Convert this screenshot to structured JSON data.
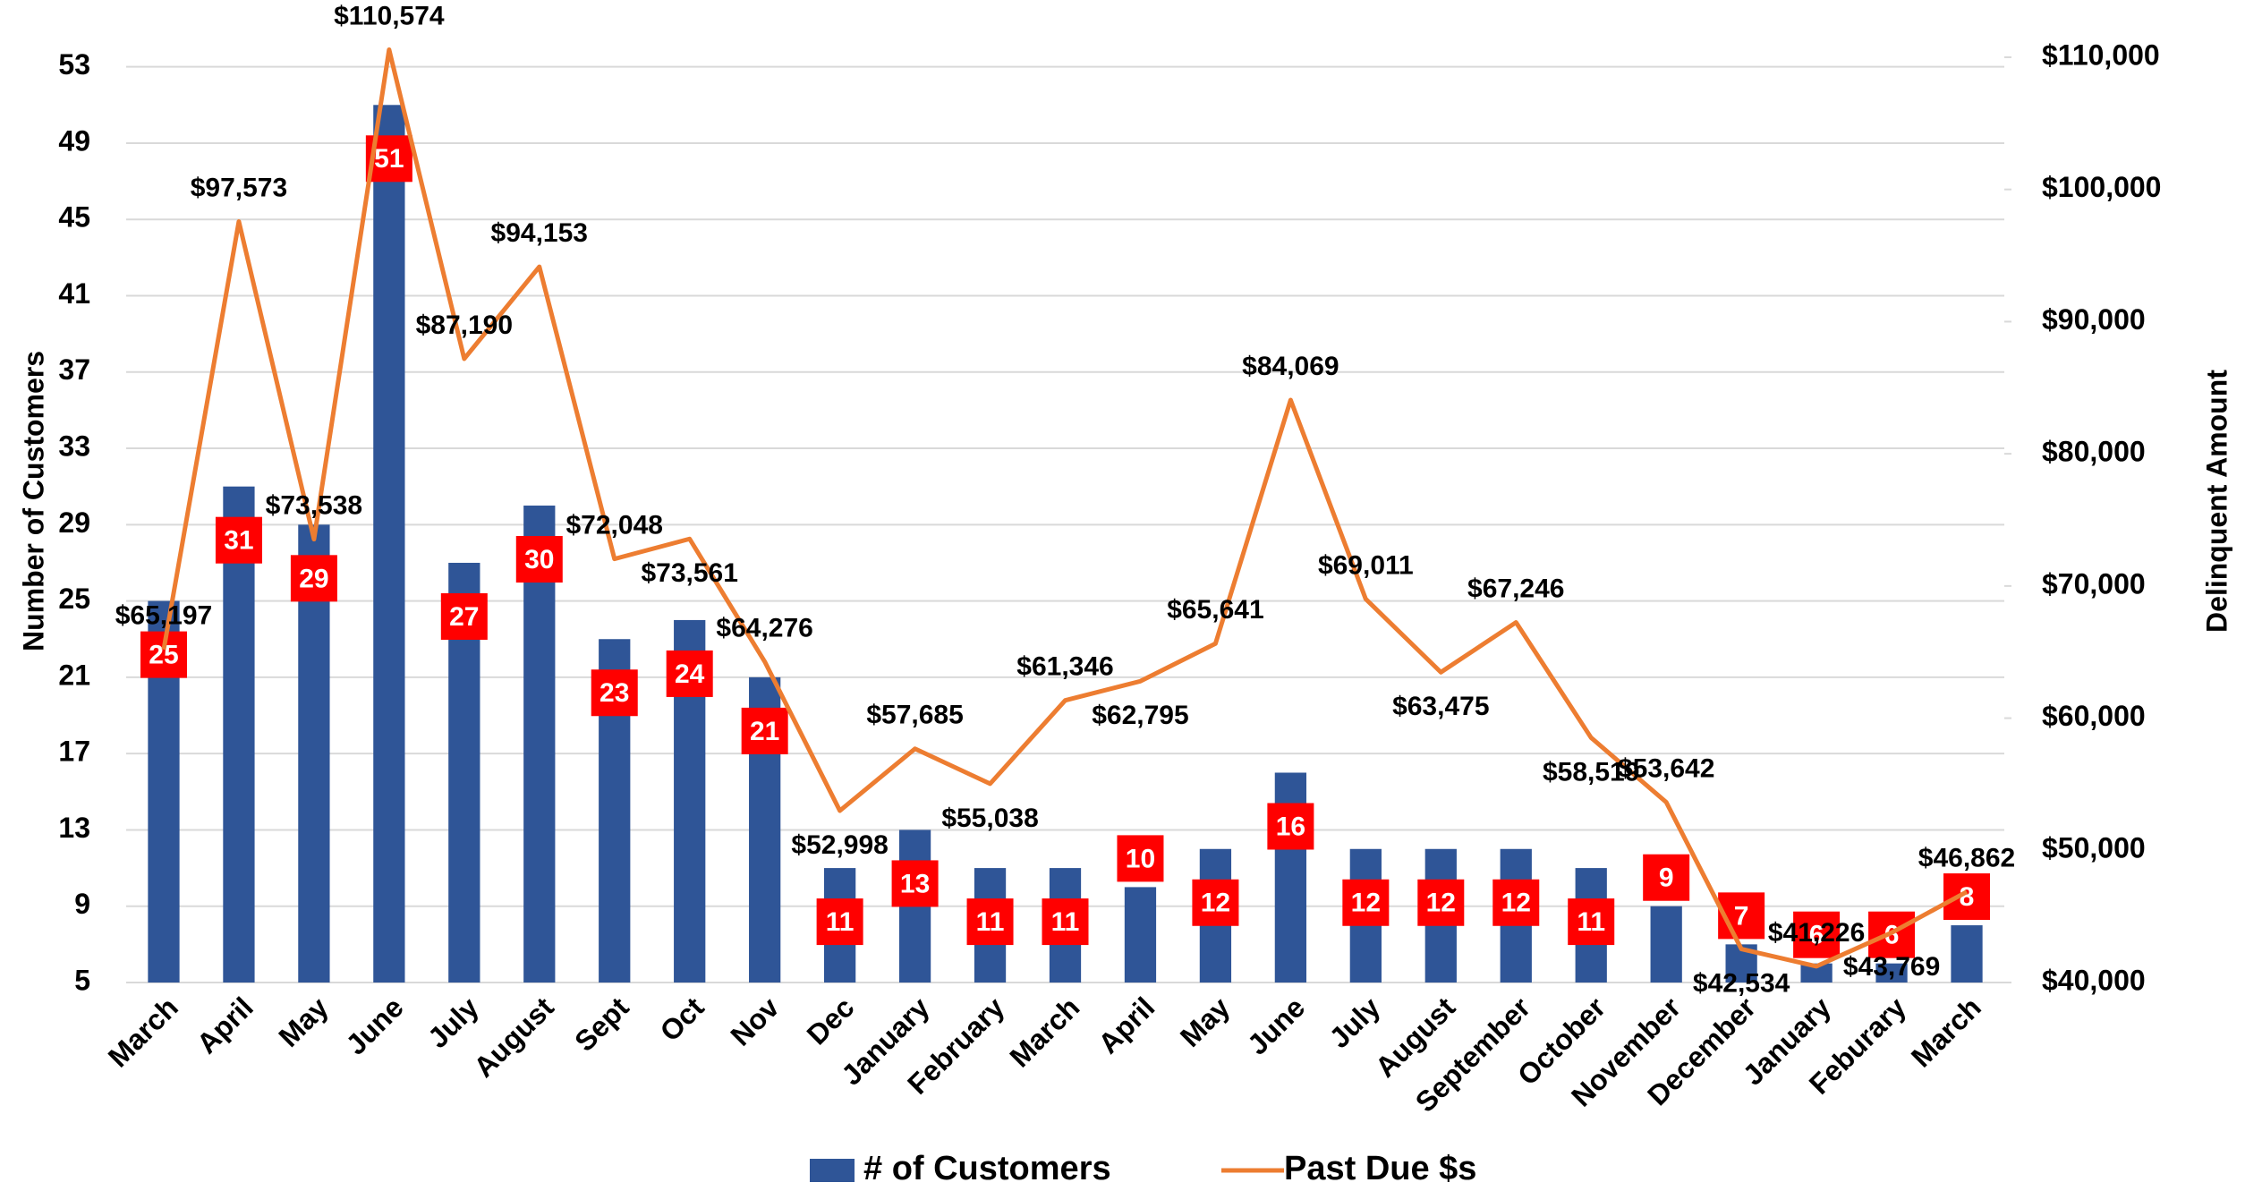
{
  "chart_data": {
    "type": "bar_line",
    "categories": [
      "March",
      "April",
      "May",
      "June",
      "July",
      "August",
      "Sept",
      "Oct",
      "Nov",
      "Dec",
      "January",
      "February",
      "March",
      "April",
      "May",
      "June",
      "July",
      "August",
      "September",
      "October",
      "November",
      "December",
      "January",
      "Feburary",
      "March"
    ],
    "series": [
      {
        "name": "# of Customers",
        "type": "bar",
        "color": "#2f5597",
        "axis": "y",
        "values": [
          25,
          31,
          29,
          51,
          27,
          30,
          23,
          24,
          21,
          11,
          13,
          11,
          11,
          10,
          12,
          16,
          12,
          12,
          12,
          11,
          9,
          7,
          6,
          6,
          8
        ]
      },
      {
        "name": "Past Due $s",
        "type": "line",
        "color": "#ed7d31",
        "axis": "y2",
        "values": [
          65197,
          97573,
          73538,
          110574,
          87190,
          94153,
          72048,
          73561,
          64276,
          52998,
          57685,
          55038,
          61346,
          62795,
          65641,
          84069,
          69011,
          63475,
          67246,
          58519,
          53642,
          42534,
          41226,
          43769,
          46862
        ],
        "value_labels": [
          "$65,197",
          "$97,573",
          "$73,538",
          "$110,574",
          "$87,190",
          "$94,153",
          "$72,048",
          "$73,561",
          "$64,276",
          "$52,998",
          "$57,685",
          "$55,038",
          "$61,346",
          "$62,795",
          "$65,641",
          "$84,069",
          "$69,011",
          "$63,475",
          "$67,246",
          "$58,519",
          "$53,642",
          "$42,534",
          "$41,226",
          "$43,769",
          "$46,862"
        ]
      }
    ],
    "y_label": "Number of Customers",
    "y2_label": "Delinquent Amount",
    "ylim": [
      5,
      53.5
    ],
    "yticks": [
      5,
      9,
      13,
      17,
      21,
      25,
      29,
      33,
      37,
      41,
      45,
      49,
      53
    ],
    "y2lim": [
      40000,
      110000
    ],
    "y2ticks": [
      {
        "value": 40000,
        "label": "$40,000"
      },
      {
        "value": 50000,
        "label": "$50,000"
      },
      {
        "value": 60000,
        "label": "$60,000"
      },
      {
        "value": 70000,
        "label": "$70,000"
      },
      {
        "value": 80000,
        "label": "$80,000"
      },
      {
        "value": 90000,
        "label": "$90,000"
      },
      {
        "value": 100000,
        "label": "$100,000"
      },
      {
        "value": 110000,
        "label": "$110,000"
      }
    ],
    "grid": true,
    "legend": "bottom",
    "data_label_color": "#ff0000"
  }
}
